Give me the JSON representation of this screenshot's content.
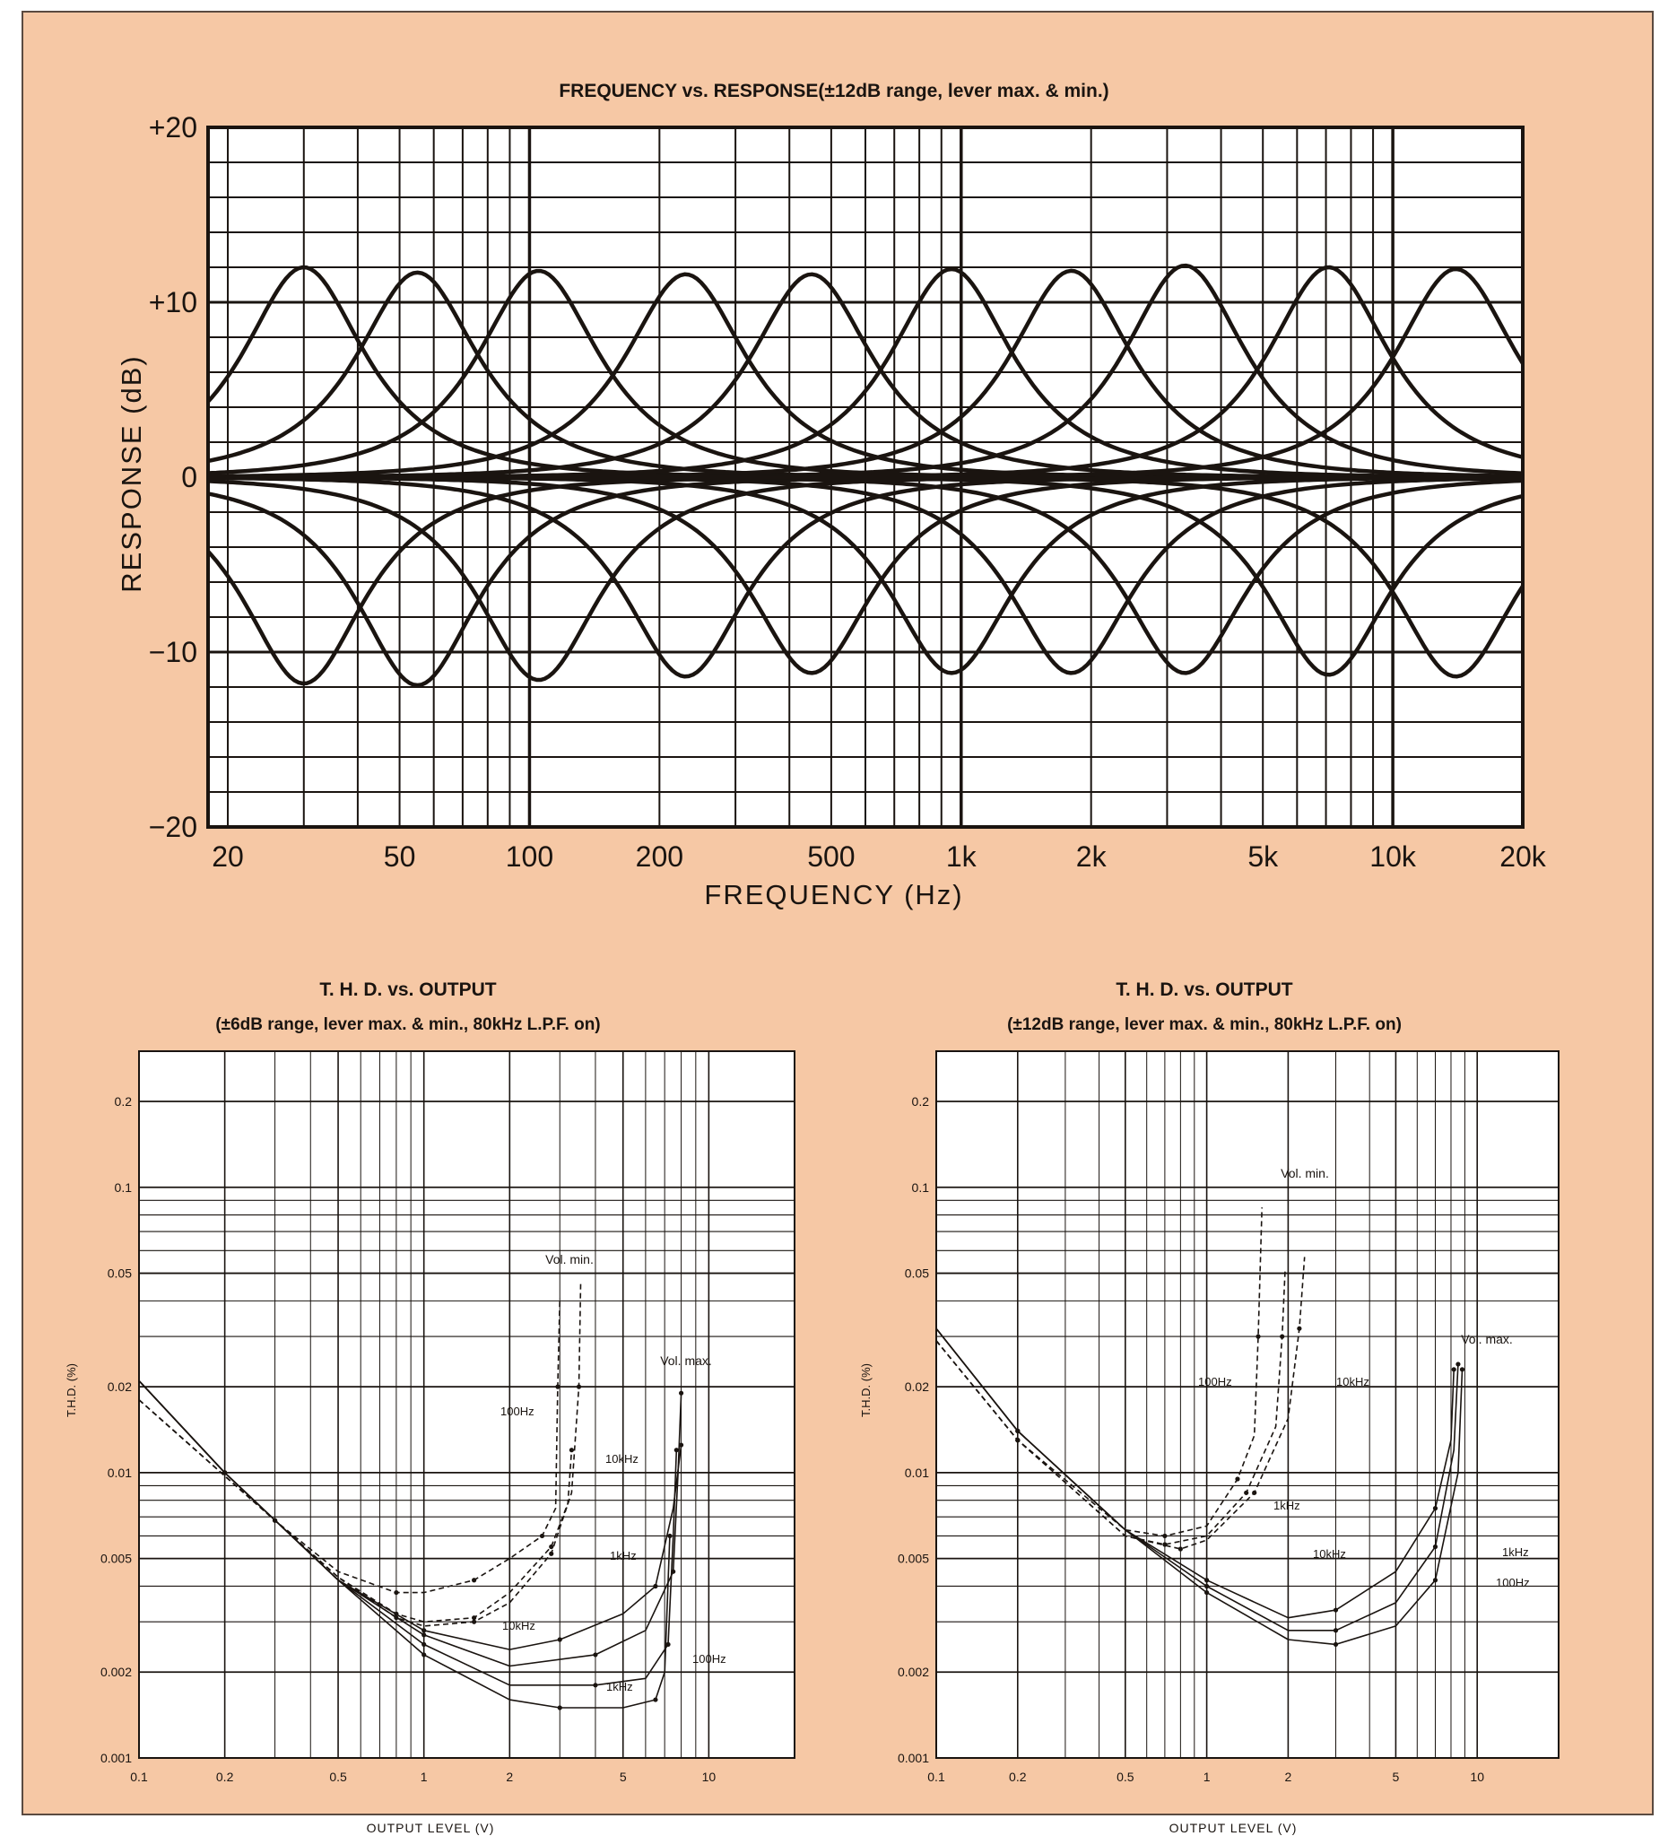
{
  "chart_data": [
    {
      "type": "line",
      "title": "FREQUENCY vs. RESPONSE(±12dB range, lever max. & min.)",
      "xlabel": "FREQUENCY (Hz)",
      "ylabel": "RESPONSE (dB)",
      "x_scale": "log",
      "xlim": [
        18,
        20000
      ],
      "ylim": [
        -20,
        20
      ],
      "x_ticks": [
        20,
        50,
        100,
        200,
        500,
        1000,
        2000,
        5000,
        10000,
        20000
      ],
      "x_tick_labels": [
        "20",
        "50",
        "100",
        "200",
        "500",
        "1k",
        "2k",
        "5k",
        "10k",
        "20k"
      ],
      "y_ticks": [
        20,
        10,
        0,
        -10,
        -20
      ],
      "y_tick_labels": [
        "+20",
        "+10",
        "0",
        "−10",
        "−20"
      ],
      "grid": true,
      "band_centers_hz": [
        30,
        55,
        105,
        230,
        450,
        950,
        1800,
        3300,
        7100,
        14000
      ],
      "boost_peaks_db": [
        12,
        11.7,
        11.8,
        11.6,
        11.6,
        11.9,
        11.8,
        12.1,
        12,
        11.9
      ],
      "cut_dips_db": [
        -11.8,
        -11.9,
        -11.6,
        -11.4,
        -11.2,
        -11.2,
        -11.2,
        -11.2,
        -11.3,
        -11.4
      ]
    },
    {
      "type": "line",
      "title": "T. H. D. vs. OUTPUT",
      "subtitle": "(±6dB range, lever max. & min., 80kHz L.P.F. on)",
      "xlabel": "OUTPUT LEVEL (V)",
      "ylabel": "T.H.D. (%)",
      "x_scale": "log",
      "y_scale": "log",
      "xlim": [
        0.1,
        20
      ],
      "ylim": [
        0.001,
        0.3
      ],
      "x_ticks": [
        0.1,
        0.2,
        0.5,
        1,
        2,
        5,
        10
      ],
      "x_tick_labels": [
        "0.1",
        "0.2",
        "0.5",
        "1",
        "2",
        "5",
        "10"
      ],
      "y_ticks": [
        0.001,
        0.002,
        0.005,
        0.01,
        0.02,
        0.05,
        0.1,
        0.2
      ],
      "y_tick_labels": [
        "0.001",
        "0.002",
        "0.005",
        "0.01",
        "0.02",
        "0.05",
        "0.1",
        "0.2"
      ],
      "grid": true,
      "series": [
        {
          "name": "100Hz",
          "group": "Vol. max.",
          "style": "solid",
          "x": [
            0.1,
            0.2,
            0.5,
            1,
            2,
            4,
            6,
            7.5,
            7.8,
            8
          ],
          "y": [
            0.021,
            0.01,
            0.0042,
            0.0027,
            0.0021,
            0.0023,
            0.0028,
            0.0045,
            0.01,
            0.019
          ]
        },
        {
          "name": "1kHz",
          "group": "Vol. max.",
          "style": "solid",
          "x": [
            0.1,
            0.2,
            0.5,
            1,
            2,
            4,
            6,
            7.2,
            7.5,
            7.7
          ],
          "y": [
            0.021,
            0.01,
            0.0042,
            0.0025,
            0.0018,
            0.0018,
            0.0019,
            0.0025,
            0.006,
            0.012
          ]
        },
        {
          "name": "",
          "group": "Vol. max.",
          "style": "solid",
          "x": [
            0.1,
            0.2,
            0.5,
            1,
            2,
            3,
            5,
            6.5,
            7,
            7.3
          ],
          "y": [
            0.021,
            0.01,
            0.0042,
            0.0023,
            0.0016,
            0.0015,
            0.0015,
            0.0016,
            0.002,
            0.006
          ]
        },
        {
          "name": "10kHz",
          "group": "Vol. max.",
          "style": "solid",
          "x": [
            0.1,
            0.2,
            0.5,
            1,
            2,
            3,
            5,
            6.5,
            7.5,
            8
          ],
          "y": [
            0.021,
            0.01,
            0.0042,
            0.0028,
            0.0024,
            0.0026,
            0.0032,
            0.004,
            0.0075,
            0.0125
          ]
        },
        {
          "name": "100Hz",
          "group": "Vol. min.",
          "style": "dashed",
          "x": [
            0.1,
            0.3,
            0.5,
            0.8,
            1,
            1.5,
            2,
            2.6,
            2.9,
            2.95,
            3
          ],
          "y": [
            0.018,
            0.0068,
            0.0045,
            0.0038,
            0.0038,
            0.0042,
            0.005,
            0.006,
            0.0075,
            0.02,
            0.041
          ]
        },
        {
          "name": "1kHz",
          "group": "Vol. min.",
          "style": "dashed",
          "x": [
            0.1,
            0.3,
            0.5,
            0.8,
            1,
            1.5,
            2,
            2.8,
            3.2,
            3.3
          ],
          "y": [
            0.018,
            0.0068,
            0.0043,
            0.0032,
            0.003,
            0.0031,
            0.0038,
            0.0055,
            0.0078,
            0.012
          ]
        },
        {
          "name": "10kHz",
          "group": "Vol. min.",
          "style": "dashed",
          "x": [
            0.1,
            0.3,
            0.5,
            0.8,
            1,
            1.5,
            2,
            2.8,
            3.3,
            3.5,
            3.55
          ],
          "y": [
            0.018,
            0.0068,
            0.0043,
            0.0031,
            0.0029,
            0.003,
            0.0035,
            0.0052,
            0.0085,
            0.02,
            0.046
          ]
        }
      ],
      "annotations": [
        "Vol. min.",
        "Vol. max.",
        "100Hz",
        "10kHz",
        "1kHz",
        "10kHz",
        "100Hz",
        "1kHz"
      ]
    },
    {
      "type": "line",
      "title": "T. H. D. vs. OUTPUT",
      "subtitle": "(±12dB range, lever max. & min., 80kHz L.P.F. on)",
      "xlabel": "OUTPUT LEVEL (V)",
      "ylabel": "T.H.D. (%)",
      "x_scale": "log",
      "y_scale": "log",
      "xlim": [
        0.1,
        20
      ],
      "ylim": [
        0.001,
        0.3
      ],
      "x_ticks": [
        0.1,
        0.2,
        0.5,
        1,
        2,
        5,
        10
      ],
      "x_tick_labels": [
        "0.1",
        "0.2",
        "0.5",
        "1",
        "2",
        "5",
        "10"
      ],
      "y_ticks": [
        0.001,
        0.002,
        0.005,
        0.01,
        0.02,
        0.05,
        0.1,
        0.2
      ],
      "y_tick_labels": [
        "0.001",
        "0.002",
        "0.005",
        "0.01",
        "0.02",
        "0.05",
        "0.1",
        "0.2"
      ],
      "grid": true,
      "series": [
        {
          "name": "10kHz",
          "group": "Vol. max.",
          "style": "solid",
          "x": [
            0.1,
            0.2,
            0.5,
            1,
            2,
            3,
            5,
            7,
            8,
            8.2
          ],
          "y": [
            0.032,
            0.014,
            0.0063,
            0.0042,
            0.0031,
            0.0033,
            0.0045,
            0.0075,
            0.013,
            0.023
          ]
        },
        {
          "name": "1kHz",
          "group": "Vol. max.",
          "style": "solid",
          "x": [
            0.1,
            0.2,
            0.5,
            1,
            2,
            3,
            5,
            7,
            8.2,
            8.5
          ],
          "y": [
            0.032,
            0.014,
            0.0063,
            0.004,
            0.0028,
            0.0028,
            0.0035,
            0.0055,
            0.012,
            0.024
          ]
        },
        {
          "name": "100Hz",
          "group": "Vol. max.",
          "style": "solid",
          "x": [
            0.1,
            0.2,
            0.5,
            1,
            2,
            3,
            5,
            7,
            8.5,
            8.8
          ],
          "y": [
            0.032,
            0.014,
            0.0063,
            0.0038,
            0.0026,
            0.0025,
            0.0029,
            0.0042,
            0.01,
            0.023
          ]
        },
        {
          "name": "100Hz",
          "group": "Vol. min.",
          "style": "dashed",
          "x": [
            0.1,
            0.2,
            0.5,
            0.7,
            1,
            1.3,
            1.5,
            1.55,
            1.6
          ],
          "y": [
            0.029,
            0.013,
            0.0063,
            0.006,
            0.0065,
            0.0095,
            0.0135,
            0.03,
            0.085
          ]
        },
        {
          "name": "1kHz",
          "group": "Vol. min.",
          "style": "dashed",
          "x": [
            0.1,
            0.2,
            0.5,
            0.7,
            1,
            1.4,
            1.8,
            1.9,
            1.95
          ],
          "y": [
            0.029,
            0.013,
            0.006,
            0.0056,
            0.006,
            0.0085,
            0.0145,
            0.03,
            0.052
          ]
        },
        {
          "name": "10kHz",
          "group": "Vol. min.",
          "style": "dashed",
          "x": [
            0.1,
            0.2,
            0.5,
            0.8,
            1,
            1.5,
            2,
            2.2,
            2.3
          ],
          "y": [
            0.029,
            0.013,
            0.006,
            0.0054,
            0.0058,
            0.0085,
            0.0155,
            0.032,
            0.057
          ]
        }
      ],
      "annotations": [
        "Vol. min.",
        "Vol. max.",
        "100Hz",
        "10kHz",
        "1kHz",
        "10kHz",
        "1kHz",
        "100Hz"
      ]
    }
  ]
}
